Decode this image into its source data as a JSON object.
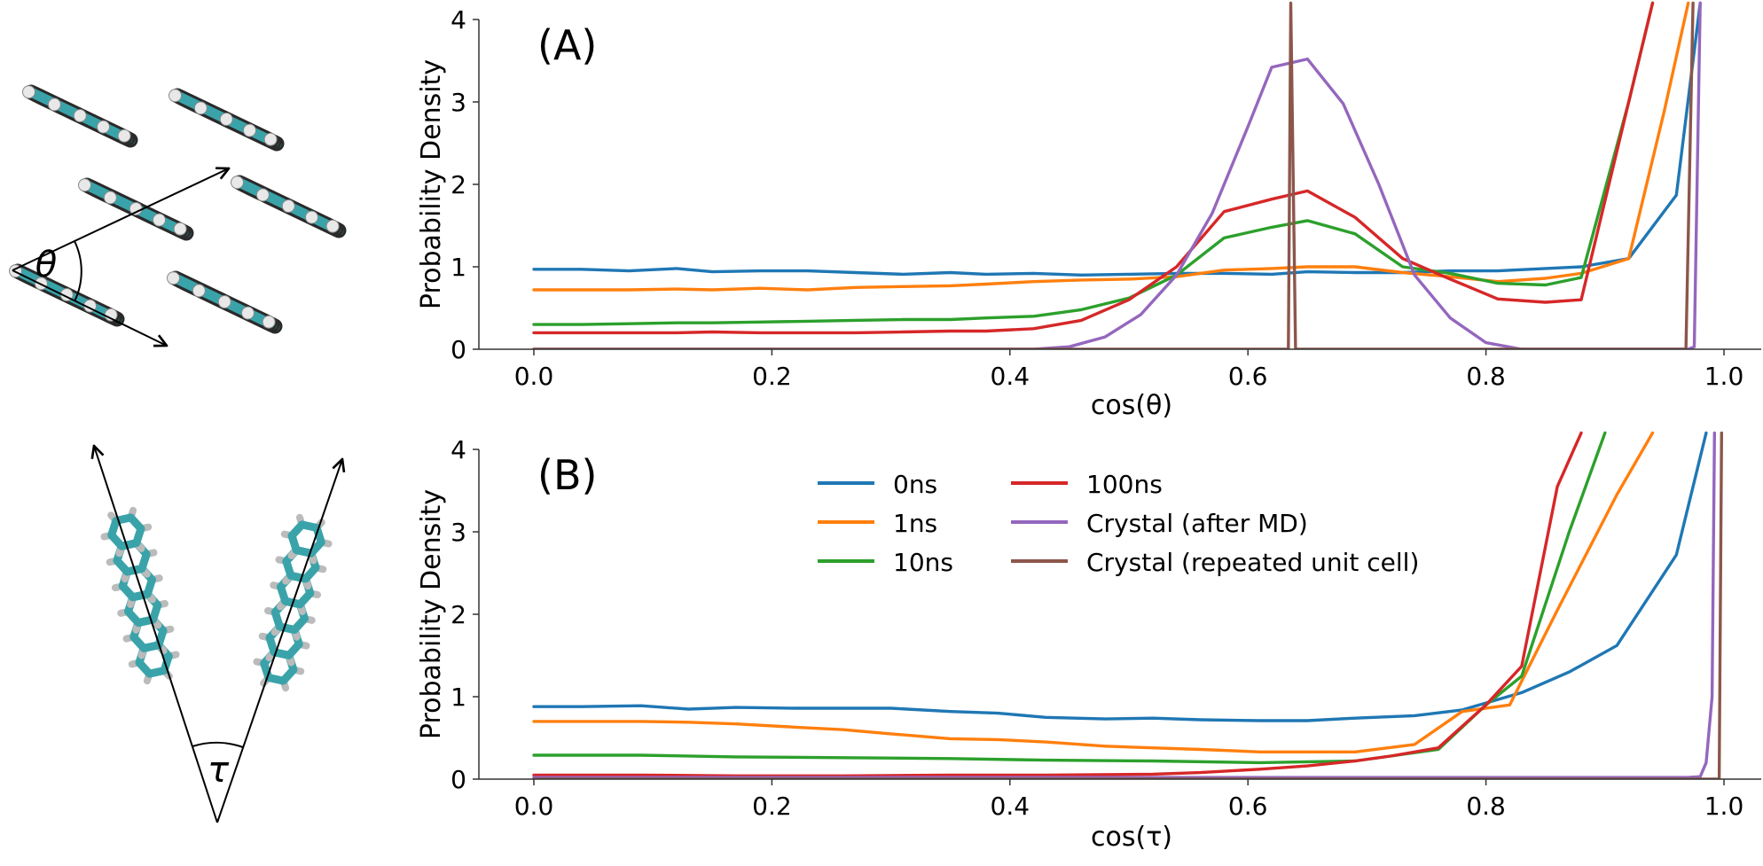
{
  "colors": {
    "s0": "#1f77b4",
    "s1": "#ff7f0e",
    "s2": "#2ca02c",
    "s3": "#d62728",
    "s4": "#9467bd",
    "s5": "#8c564b",
    "carbon": "#3aa3aa",
    "hydrogen": "#e8e8e8",
    "axis": "#333333"
  },
  "illustrations": [
    {
      "label": "θ",
      "icon": "dimer-herringbone-theta-icon"
    },
    {
      "label": "τ",
      "icon": "dimer-tau-angle-icon"
    }
  ],
  "chart_data": [
    {
      "type": "line",
      "panel_label": "(A)",
      "xlabel": "cos(θ)",
      "ylabel": "Probability Density",
      "xlim": [
        -0.04,
        1.02
      ],
      "ylim": [
        0,
        4
      ],
      "xticks": [
        0.0,
        0.2,
        0.4,
        0.6,
        0.8,
        1.0
      ],
      "xtick_labels": [
        "0.0",
        "0.2",
        "0.4",
        "0.6",
        "0.8",
        "1.0"
      ],
      "yticks": [
        0,
        1,
        2,
        3,
        4
      ],
      "ytick_labels": [
        "0",
        "1",
        "2",
        "3",
        "4"
      ],
      "grid": false,
      "series": [
        {
          "name": "0ns",
          "color_key": "s0",
          "x": [
            0.0,
            0.04,
            0.08,
            0.12,
            0.15,
            0.19,
            0.23,
            0.27,
            0.31,
            0.35,
            0.38,
            0.42,
            0.46,
            0.5,
            0.54,
            0.58,
            0.62,
            0.65,
            0.69,
            0.73,
            0.77,
            0.81,
            0.85,
            0.88,
            0.92,
            0.96,
            0.98
          ],
          "y": [
            0.97,
            0.97,
            0.95,
            0.98,
            0.94,
            0.95,
            0.95,
            0.93,
            0.91,
            0.93,
            0.91,
            0.92,
            0.9,
            0.91,
            0.92,
            0.92,
            0.91,
            0.94,
            0.93,
            0.93,
            0.95,
            0.95,
            0.98,
            1.0,
            1.1,
            1.87,
            4.2
          ]
        },
        {
          "name": "1ns",
          "color_key": "s1",
          "x": [
            0.0,
            0.04,
            0.08,
            0.12,
            0.15,
            0.19,
            0.23,
            0.27,
            0.31,
            0.35,
            0.38,
            0.42,
            0.46,
            0.5,
            0.54,
            0.58,
            0.62,
            0.65,
            0.69,
            0.73,
            0.77,
            0.81,
            0.85,
            0.88,
            0.92,
            0.95,
            0.97
          ],
          "y": [
            0.72,
            0.72,
            0.72,
            0.73,
            0.72,
            0.74,
            0.72,
            0.75,
            0.76,
            0.77,
            0.79,
            0.82,
            0.84,
            0.85,
            0.88,
            0.96,
            0.98,
            1.0,
            1.0,
            0.93,
            0.88,
            0.82,
            0.86,
            0.92,
            1.1,
            2.9,
            4.2
          ]
        },
        {
          "name": "10ns",
          "color_key": "s2",
          "x": [
            0.0,
            0.04,
            0.08,
            0.12,
            0.15,
            0.19,
            0.23,
            0.27,
            0.31,
            0.35,
            0.38,
            0.42,
            0.46,
            0.5,
            0.54,
            0.58,
            0.62,
            0.65,
            0.69,
            0.73,
            0.77,
            0.81,
            0.85,
            0.88,
            0.92,
            0.94
          ],
          "y": [
            0.3,
            0.3,
            0.31,
            0.32,
            0.32,
            0.33,
            0.34,
            0.35,
            0.36,
            0.36,
            0.38,
            0.4,
            0.48,
            0.62,
            0.9,
            1.35,
            1.48,
            1.56,
            1.4,
            1.0,
            0.92,
            0.8,
            0.78,
            0.87,
            3.0,
            4.2
          ]
        },
        {
          "name": "100ns",
          "color_key": "s3",
          "x": [
            0.0,
            0.04,
            0.08,
            0.12,
            0.15,
            0.19,
            0.23,
            0.27,
            0.31,
            0.35,
            0.38,
            0.42,
            0.46,
            0.5,
            0.54,
            0.58,
            0.62,
            0.65,
            0.69,
            0.73,
            0.77,
            0.81,
            0.85,
            0.88,
            0.92,
            0.94
          ],
          "y": [
            0.2,
            0.2,
            0.2,
            0.2,
            0.21,
            0.2,
            0.2,
            0.2,
            0.21,
            0.22,
            0.22,
            0.25,
            0.35,
            0.6,
            1.0,
            1.67,
            1.82,
            1.92,
            1.6,
            1.1,
            0.85,
            0.61,
            0.57,
            0.6,
            3.0,
            4.2
          ]
        },
        {
          "name": "Crystal (after MD)",
          "color_key": "s4",
          "x": [
            0.0,
            0.42,
            0.45,
            0.48,
            0.51,
            0.54,
            0.57,
            0.6,
            0.62,
            0.65,
            0.68,
            0.71,
            0.74,
            0.77,
            0.8,
            0.83,
            0.97,
            0.975,
            0.98
          ],
          "y": [
            0.0,
            0.0,
            0.03,
            0.15,
            0.42,
            0.9,
            1.65,
            2.7,
            3.42,
            3.52,
            2.98,
            2.0,
            0.9,
            0.38,
            0.08,
            0.0,
            0.0,
            0.03,
            4.2
          ]
        },
        {
          "name": "Crystal (repeated unit cell)",
          "color_key": "s5",
          "x": [
            0.0,
            0.634,
            0.636,
            0.64,
            0.968,
            0.974
          ],
          "y": [
            0.0,
            0.0,
            4.2,
            0.0,
            0.0,
            4.2
          ]
        }
      ]
    },
    {
      "type": "line",
      "panel_label": "(B)",
      "xlabel": "cos(τ)",
      "ylabel": "Probability Density",
      "xlim": [
        -0.04,
        1.02
      ],
      "ylim": [
        0,
        4
      ],
      "xticks": [
        0.0,
        0.2,
        0.4,
        0.6,
        0.8,
        1.0
      ],
      "xtick_labels": [
        "0.0",
        "0.2",
        "0.4",
        "0.6",
        "0.8",
        "1.0"
      ],
      "yticks": [
        0,
        1,
        2,
        3,
        4
      ],
      "ytick_labels": [
        "0",
        "1",
        "2",
        "3",
        "4"
      ],
      "grid": false,
      "legend": {
        "placement": "upper-center",
        "columns": 2
      },
      "series": [
        {
          "name": "0ns",
          "color_key": "s0",
          "x": [
            0.0,
            0.04,
            0.09,
            0.13,
            0.17,
            0.22,
            0.26,
            0.3,
            0.35,
            0.39,
            0.43,
            0.48,
            0.52,
            0.56,
            0.61,
            0.65,
            0.69,
            0.74,
            0.78,
            0.83,
            0.87,
            0.91,
            0.96,
            0.985
          ],
          "y": [
            0.88,
            0.88,
            0.89,
            0.85,
            0.87,
            0.86,
            0.86,
            0.86,
            0.82,
            0.8,
            0.75,
            0.73,
            0.74,
            0.72,
            0.71,
            0.71,
            0.74,
            0.77,
            0.84,
            1.05,
            1.3,
            1.62,
            2.72,
            4.2
          ]
        },
        {
          "name": "1ns",
          "color_key": "s1",
          "x": [
            0.0,
            0.04,
            0.09,
            0.13,
            0.17,
            0.22,
            0.26,
            0.3,
            0.35,
            0.39,
            0.43,
            0.48,
            0.52,
            0.56,
            0.61,
            0.65,
            0.69,
            0.74,
            0.78,
            0.82,
            0.86,
            0.91,
            0.94
          ],
          "y": [
            0.7,
            0.7,
            0.7,
            0.69,
            0.67,
            0.63,
            0.6,
            0.55,
            0.49,
            0.48,
            0.45,
            0.4,
            0.38,
            0.36,
            0.33,
            0.33,
            0.33,
            0.42,
            0.82,
            0.9,
            2.05,
            3.45,
            4.2
          ]
        },
        {
          "name": "10ns",
          "color_key": "s2",
          "x": [
            0.0,
            0.09,
            0.17,
            0.26,
            0.35,
            0.43,
            0.52,
            0.61,
            0.69,
            0.76,
            0.8,
            0.83,
            0.87,
            0.9
          ],
          "y": [
            0.29,
            0.29,
            0.27,
            0.26,
            0.25,
            0.23,
            0.22,
            0.2,
            0.22,
            0.36,
            0.9,
            1.25,
            3.0,
            4.2
          ]
        },
        {
          "name": "100ns",
          "color_key": "s3",
          "x": [
            0.0,
            0.09,
            0.17,
            0.26,
            0.35,
            0.43,
            0.52,
            0.56,
            0.61,
            0.65,
            0.69,
            0.72,
            0.76,
            0.8,
            0.83,
            0.86,
            0.88
          ],
          "y": [
            0.05,
            0.05,
            0.04,
            0.04,
            0.05,
            0.05,
            0.06,
            0.08,
            0.12,
            0.16,
            0.22,
            0.28,
            0.38,
            0.9,
            1.37,
            3.55,
            4.2
          ]
        },
        {
          "name": "Crystal (after MD)",
          "color_key": "s4",
          "x": [
            0.0,
            0.97,
            0.98,
            0.985,
            0.99,
            0.992
          ],
          "y": [
            0.02,
            0.02,
            0.03,
            0.2,
            1.0,
            4.2
          ]
        },
        {
          "name": "Crystal (repeated unit cell)",
          "color_key": "s5",
          "x": [
            0.0,
            0.996,
            0.998
          ],
          "y": [
            0.0,
            0.0,
            4.2
          ]
        }
      ]
    }
  ]
}
